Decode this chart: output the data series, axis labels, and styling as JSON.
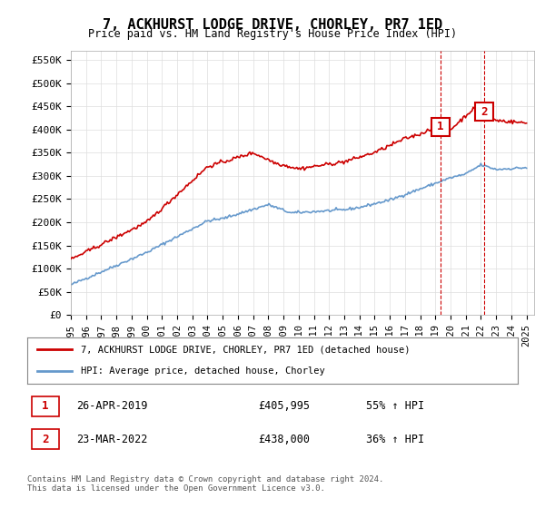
{
  "title": "7, ACKHURST LODGE DRIVE, CHORLEY, PR7 1ED",
  "subtitle": "Price paid vs. HM Land Registry's House Price Index (HPI)",
  "ylabel_ticks": [
    "£0",
    "£50K",
    "£100K",
    "£150K",
    "£200K",
    "£250K",
    "£300K",
    "£350K",
    "£400K",
    "£450K",
    "£500K",
    "£550K"
  ],
  "ytick_vals": [
    0,
    50000,
    100000,
    150000,
    200000,
    250000,
    300000,
    350000,
    400000,
    450000,
    500000,
    550000
  ],
  "ylim": [
    0,
    570000
  ],
  "xlim_start": 1995.0,
  "xlim_end": 2025.5,
  "xtick_years": [
    1995,
    1996,
    1997,
    1998,
    1999,
    2000,
    2001,
    2002,
    2003,
    2004,
    2005,
    2006,
    2007,
    2008,
    2009,
    2010,
    2011,
    2012,
    2013,
    2014,
    2015,
    2016,
    2017,
    2018,
    2019,
    2020,
    2021,
    2022,
    2023,
    2024,
    2025
  ],
  "sale1_x": 2019.32,
  "sale1_y": 405995,
  "sale1_label": "1",
  "sale2_x": 2022.23,
  "sale2_y": 438000,
  "sale2_label": "2",
  "sale_color": "#cc0000",
  "hpi_color": "#6699cc",
  "vline_color": "#cc0000",
  "marker_box_color": "#cc0000",
  "legend_line1": "7, ACKHURST LODGE DRIVE, CHORLEY, PR7 1ED (detached house)",
  "legend_line2": "HPI: Average price, detached house, Chorley",
  "table_row1": "1   26-APR-2019        £405,995       55% ↑ HPI",
  "table_row2": "2   23-MAR-2022        £438,000       36% ↑ HPI",
  "footer": "Contains HM Land Registry data © Crown copyright and database right 2024.\nThis data is licensed under the Open Government Licence v3.0.",
  "background_color": "#ffffff",
  "grid_color": "#dddddd"
}
